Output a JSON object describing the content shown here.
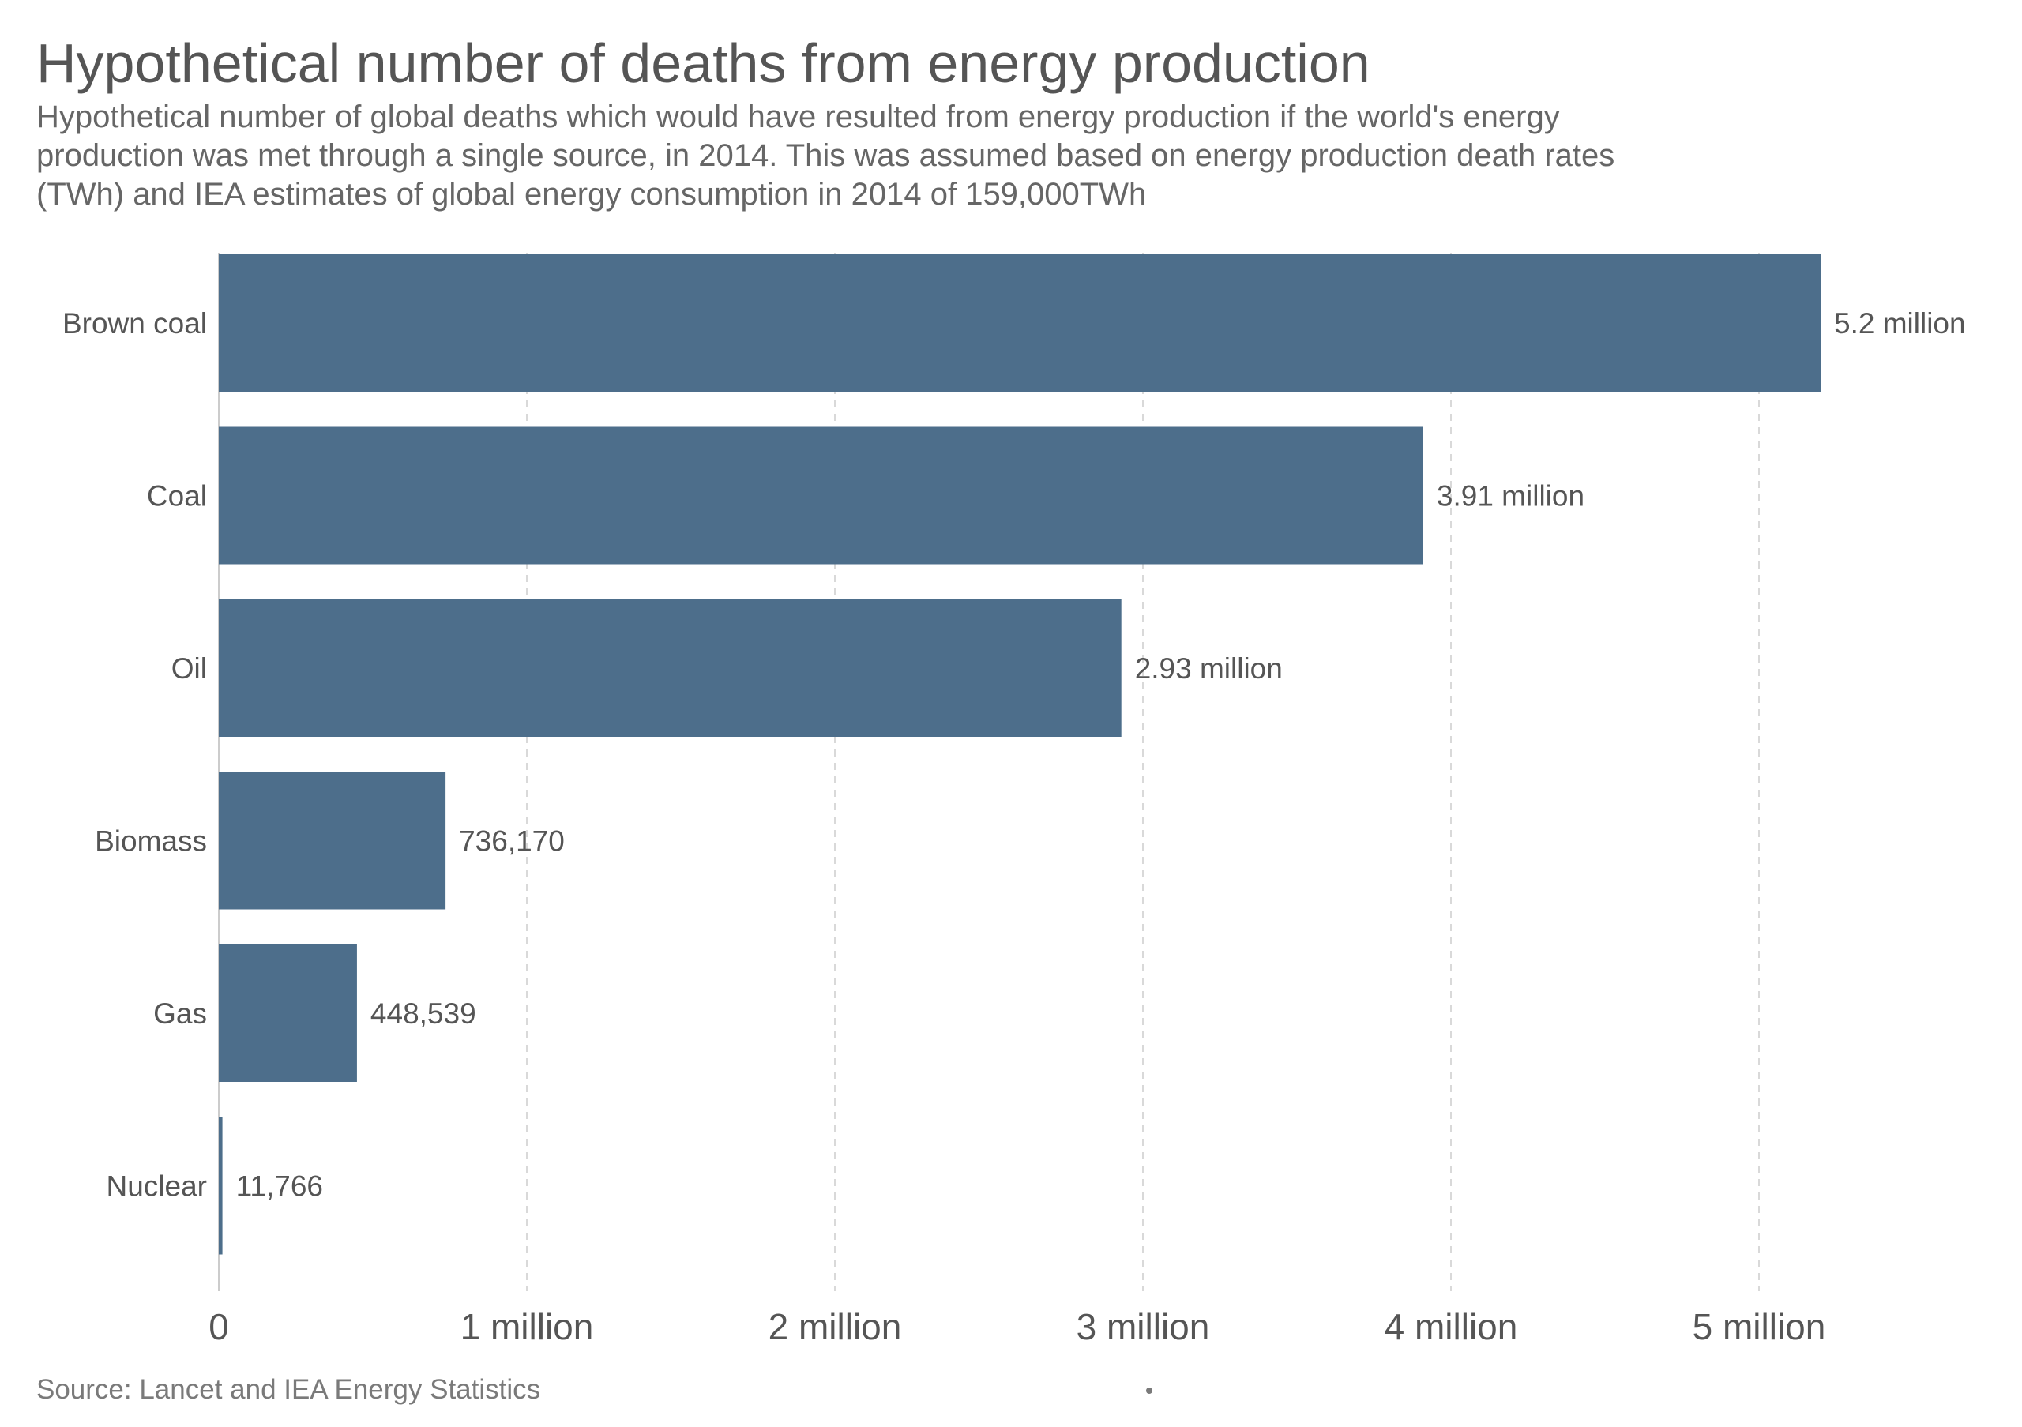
{
  "chart_data": {
    "type": "bar",
    "orientation": "horizontal",
    "title": "Hypothetical number of deaths from energy production",
    "subtitle_lines": [
      "Hypothetical number of global deaths which would have resulted from energy production if the world's energy",
      "production was met through a single source, in 2014. This was assumed based on energy production death rates",
      "(TWh) and IEA estimates of global energy consumption in 2014 of 159,000TWh"
    ],
    "categories": [
      "Brown coal",
      "Coal",
      "Oil",
      "Biomass",
      "Gas",
      "Nuclear"
    ],
    "values": [
      5200000,
      3910000,
      2930000,
      736170,
      448539,
      11766
    ],
    "data_labels": [
      "5.2 million",
      "3.91 million",
      "2.93 million",
      "736,170",
      "448,539",
      "11,766"
    ],
    "xlim": [
      0,
      5200000
    ],
    "x_ticks": [
      0,
      1000000,
      2000000,
      3000000,
      4000000,
      5000000
    ],
    "x_tick_labels": [
      "0",
      "1 million",
      "2 million",
      "3 million",
      "4 million",
      "5 million"
    ],
    "grid": "vertical-dashed",
    "legend": "none",
    "bar_color": "#4d6e8b",
    "grid_color": "#d9d9d9",
    "source": "Source: Lancet and IEA Energy Statistics"
  }
}
